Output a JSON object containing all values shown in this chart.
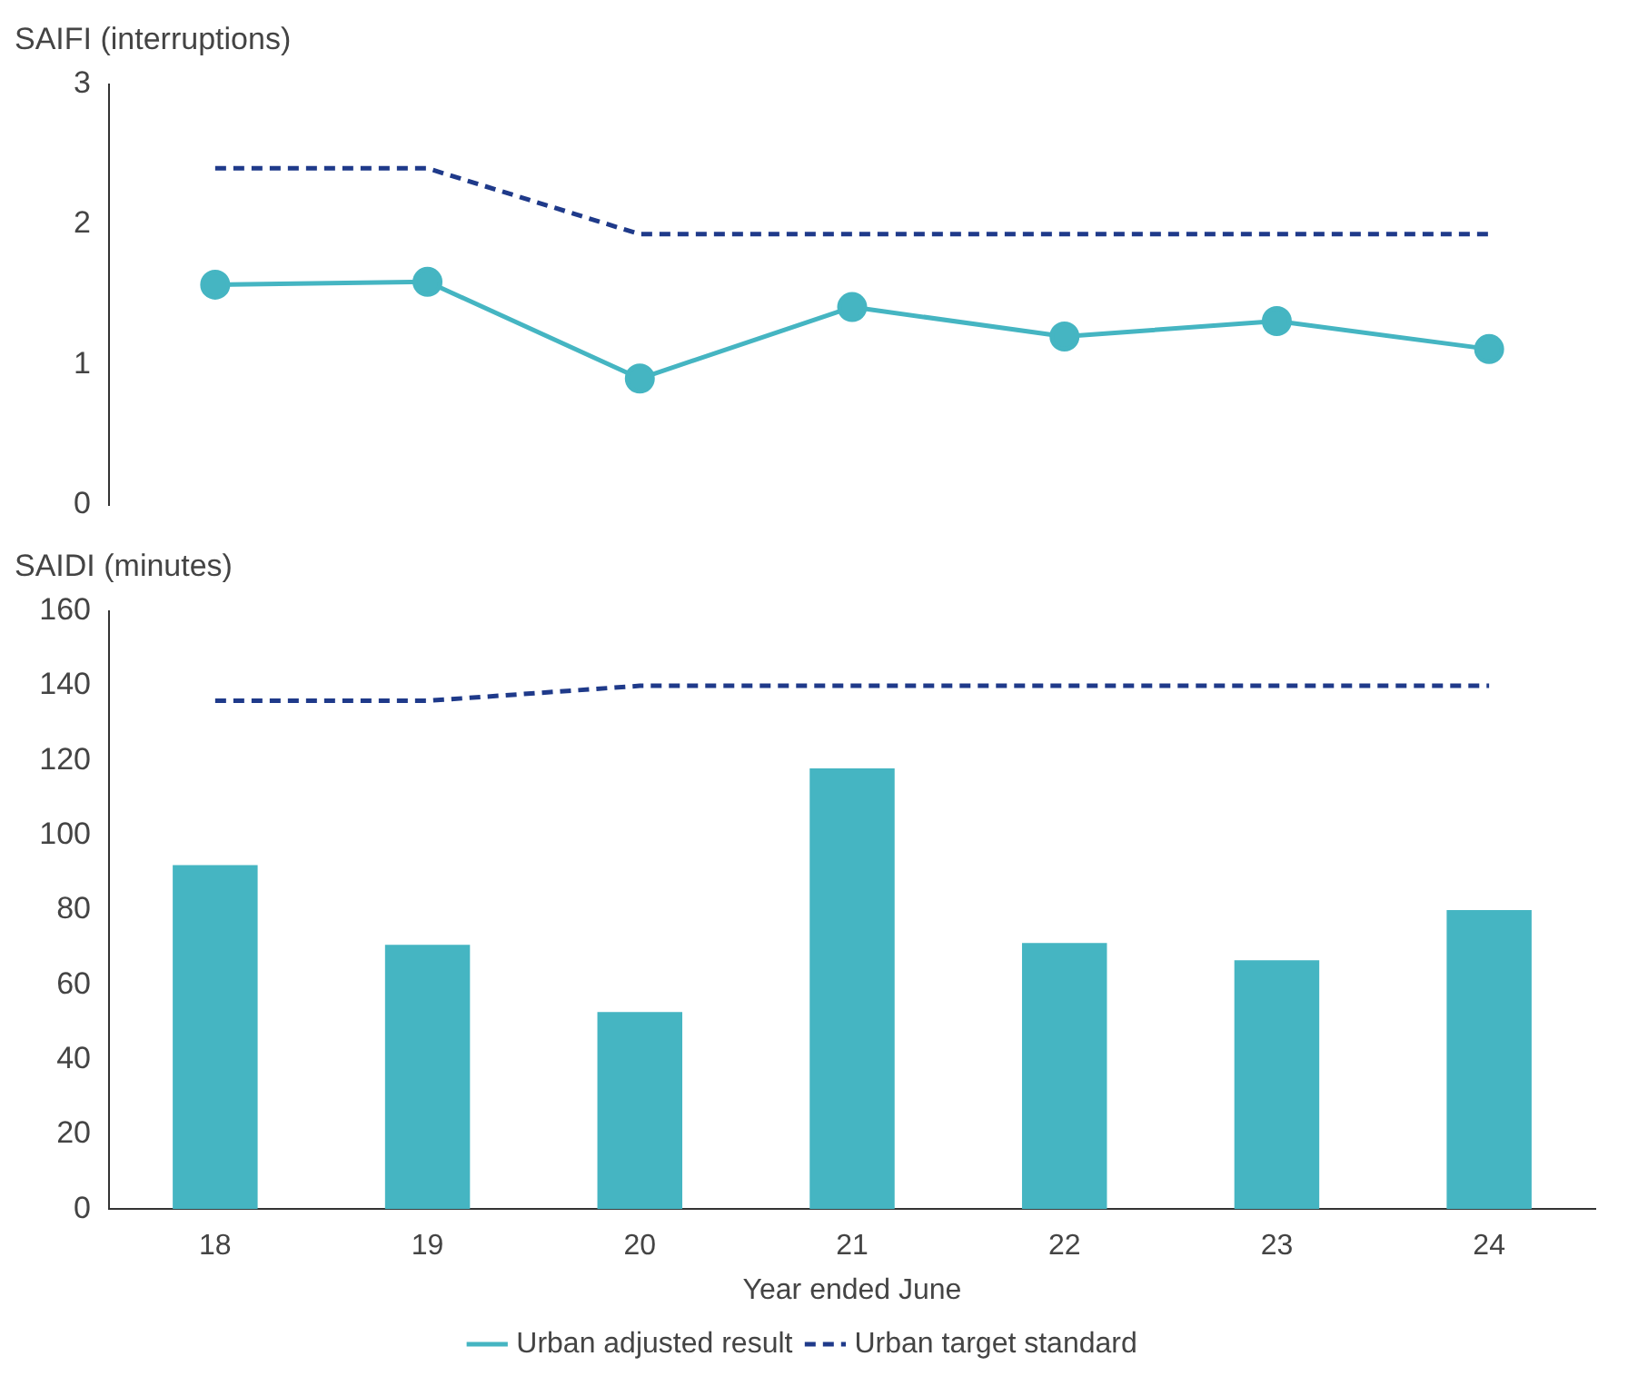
{
  "chart_data": [
    {
      "type": "line",
      "title": "SAIFI (interruptions)",
      "categories": [
        "18",
        "19",
        "20",
        "21",
        "22",
        "23",
        "24"
      ],
      "ylim": [
        0,
        3
      ],
      "yticks": [
        0,
        1,
        2,
        3
      ],
      "grid": false,
      "legend": false,
      "tick_labels": "y",
      "series": [
        {
          "color": "#45b5c2",
          "values": [
            1.57,
            1.59,
            0.9,
            1.41,
            1.2,
            1.31,
            1.11
          ],
          "marker": "circle",
          "line_style": "solid"
        },
        {
          "color": "#1f3a8a",
          "values": [
            2.4,
            2.4,
            1.93,
            1.93,
            1.93,
            1.93,
            1.93
          ],
          "marker": "none",
          "line_style": "dashed"
        }
      ]
    },
    {
      "type": "bar",
      "title": "SAIDI (minutes)",
      "xlabel": "Year ended June",
      "categories": [
        "18",
        "19",
        "20",
        "21",
        "22",
        "23",
        "24"
      ],
      "ylim": [
        0,
        160
      ],
      "yticks": [
        0,
        20,
        40,
        60,
        80,
        100,
        120,
        140,
        160
      ],
      "grid": false,
      "legend": "bottom",
      "series": [
        {
          "name": "Urban adjusted result",
          "color": "#45b5c2",
          "values": [
            92,
            70.7,
            52.7,
            117.9,
            71.2,
            66.6,
            80
          ]
        },
        {
          "name": "Urban target standard",
          "type": "line",
          "color": "#1f3a8a",
          "values": [
            136,
            136,
            140,
            140,
            140,
            140,
            140
          ],
          "marker": "none",
          "line_style": "dashed"
        }
      ]
    }
  ]
}
